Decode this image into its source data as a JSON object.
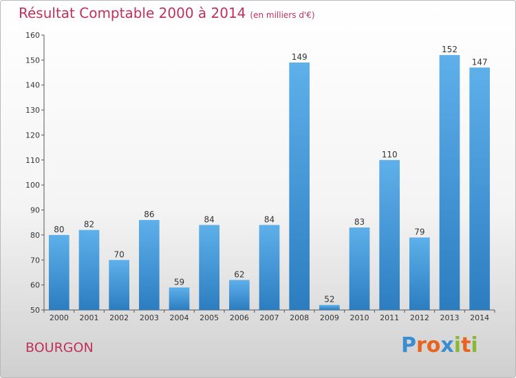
{
  "header": {
    "title": "Résultat Comptable 2000 à 2014",
    "subtitle": "(en milliers d'€)"
  },
  "footer": {
    "place": "BOURGON",
    "logo_letters": [
      "P",
      "r",
      "o",
      "x",
      "i",
      "t",
      "i"
    ],
    "logo_colors": [
      "#3a8ed0",
      "#e8641e",
      "#e8641e",
      "#3a8ed0",
      "#8ab834",
      "#e8641e",
      "#8ab834"
    ]
  },
  "chart_data": {
    "type": "bar",
    "title": "Résultat Comptable 2000 à 2014",
    "subtitle": "(en milliers d'€)",
    "categories": [
      "2000",
      "2001",
      "2002",
      "2003",
      "2004",
      "2005",
      "2006",
      "2007",
      "2008",
      "2009",
      "2010",
      "2011",
      "2012",
      "2013",
      "2014"
    ],
    "values": [
      80,
      82,
      70,
      86,
      59,
      84,
      62,
      84,
      149,
      52,
      83,
      110,
      79,
      152,
      147
    ],
    "ylim": [
      50,
      160
    ],
    "yticks": [
      50,
      60,
      70,
      80,
      90,
      100,
      110,
      120,
      130,
      140,
      150,
      160
    ],
    "grid": false,
    "bar_color": "#4a9fde"
  }
}
